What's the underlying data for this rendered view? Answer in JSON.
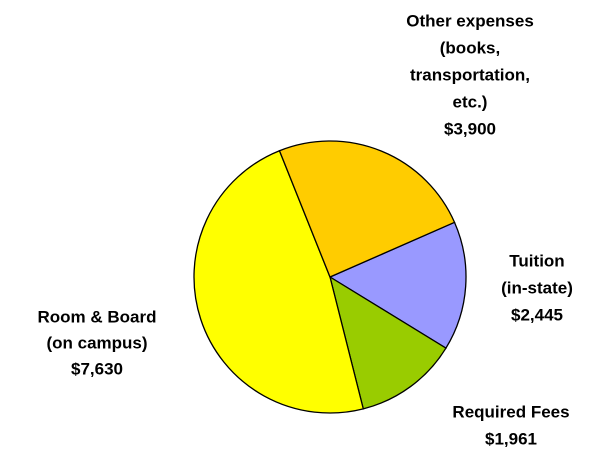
{
  "chart_data": {
    "type": "pie",
    "categories": [
      [
        "Tuition",
        "(in-state)"
      ],
      [
        "Required Fees"
      ],
      [
        "Room & Board",
        "(on campus)"
      ],
      [
        "Other expenses",
        "(books,",
        "transportation,",
        "etc.)"
      ]
    ],
    "values": [
      2445,
      1961,
      7630,
      3900
    ],
    "value_labels": [
      "$2,445",
      "$1,961",
      "$7,630",
      "$3,900"
    ],
    "colors": [
      "#9999ff",
      "#99cc00",
      "#ffff00",
      "#ffcc00"
    ]
  }
}
